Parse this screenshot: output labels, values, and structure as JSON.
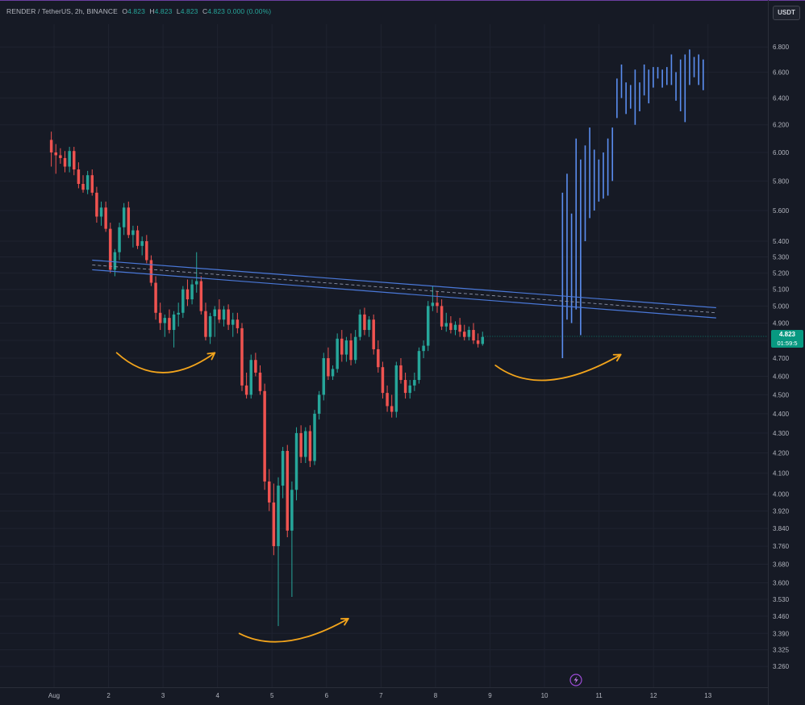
{
  "header": {
    "symbol": "RENDER / TetherUS, 2h, BINANCE",
    "o_label": "O",
    "o_value": "4.823",
    "h_label": "H",
    "h_value": "4.823",
    "l_label": "L",
    "l_value": "4.823",
    "c_label": "C",
    "c_value": "4.823",
    "change": "0.000 (0.00%)"
  },
  "unit_button": "USDT",
  "price_label": {
    "price": "4.823",
    "countdown": "01:59:5"
  },
  "colors": {
    "background": "#161a25",
    "up": "#26a69a",
    "down": "#ef5350",
    "projection": "#5b8ef0",
    "trendline": "#4a78d8",
    "arrow": "#f2a41c"
  },
  "chart_data": {
    "type": "candlestick",
    "scale": "log",
    "ylim": [
      3.22,
      6.9
    ],
    "xlim": [
      1.0,
      13.3
    ],
    "y_ticks": [
      "6.800",
      "6.600",
      "6.400",
      "6.200",
      "6.000",
      "5.800",
      "5.600",
      "5.400",
      "5.300",
      "5.200",
      "5.100",
      "5.000",
      "4.900",
      "4.800",
      "4.700",
      "4.600",
      "4.500",
      "4.400",
      "4.300",
      "4.200",
      "4.100",
      "4.000",
      "3.920",
      "3.840",
      "3.760",
      "3.680",
      "3.600",
      "3.530",
      "3.460",
      "3.390",
      "3.325",
      "3.260"
    ],
    "x_ticks": [
      {
        "v": 1.0,
        "label": "Aug"
      },
      {
        "v": 2,
        "label": "2"
      },
      {
        "v": 3,
        "label": "3"
      },
      {
        "v": 4,
        "label": "4"
      },
      {
        "v": 5,
        "label": "5"
      },
      {
        "v": 6,
        "label": "6"
      },
      {
        "v": 7,
        "label": "7"
      },
      {
        "v": 8,
        "label": "8"
      },
      {
        "v": 9,
        "label": "9"
      },
      {
        "v": 10,
        "label": "10"
      },
      {
        "v": 11,
        "label": "11"
      },
      {
        "v": 12,
        "label": "12"
      },
      {
        "v": 13,
        "label": "13"
      }
    ],
    "candles_start_x": 0.95,
    "candles_step": 0.0833,
    "candles": [
      [
        6.09,
        6.15,
        5.9,
        6.0
      ],
      [
        6.0,
        6.06,
        5.85,
        5.98
      ],
      [
        5.98,
        6.03,
        5.92,
        5.96
      ],
      [
        5.96,
        6.01,
        5.86,
        5.9
      ],
      [
        5.9,
        6.04,
        5.86,
        6.01
      ],
      [
        6.01,
        6.04,
        5.84,
        5.88
      ],
      [
        5.88,
        5.93,
        5.75,
        5.78
      ],
      [
        5.78,
        5.84,
        5.72,
        5.74
      ],
      [
        5.74,
        5.87,
        5.71,
        5.84
      ],
      [
        5.84,
        5.88,
        5.7,
        5.72
      ],
      [
        5.72,
        5.76,
        5.52,
        5.56
      ],
      [
        5.56,
        5.66,
        5.5,
        5.62
      ],
      [
        5.62,
        5.66,
        5.46,
        5.48
      ],
      [
        5.48,
        5.52,
        5.2,
        5.22
      ],
      [
        5.22,
        5.35,
        5.18,
        5.33
      ],
      [
        5.33,
        5.52,
        5.28,
        5.49
      ],
      [
        5.49,
        5.65,
        5.44,
        5.62
      ],
      [
        5.62,
        5.66,
        5.42,
        5.44
      ],
      [
        5.44,
        5.5,
        5.36,
        5.47
      ],
      [
        5.47,
        5.5,
        5.35,
        5.37
      ],
      [
        5.37,
        5.43,
        5.31,
        5.4
      ],
      [
        5.4,
        5.44,
        5.26,
        5.28
      ],
      [
        5.28,
        5.31,
        5.12,
        5.14
      ],
      [
        5.14,
        5.18,
        4.92,
        4.96
      ],
      [
        4.96,
        5.02,
        4.86,
        4.9
      ],
      [
        4.9,
        4.95,
        4.82,
        4.93
      ],
      [
        4.93,
        4.98,
        4.84,
        4.86
      ],
      [
        4.86,
        4.97,
        4.76,
        4.95
      ],
      [
        4.95,
        5.02,
        4.88,
        4.96
      ],
      [
        4.96,
        5.12,
        4.93,
        5.1
      ],
      [
        5.1,
        5.16,
        5.0,
        5.04
      ],
      [
        5.04,
        5.16,
        5.01,
        5.13
      ],
      [
        5.13,
        5.33,
        5.08,
        5.15
      ],
      [
        5.15,
        5.18,
        4.95,
        4.97
      ],
      [
        4.97,
        5.02,
        4.8,
        4.82
      ],
      [
        4.82,
        4.96,
        4.78,
        4.94
      ],
      [
        4.94,
        5.0,
        4.82,
        4.98
      ],
      [
        4.98,
        5.04,
        4.9,
        4.92
      ],
      [
        4.92,
        5.0,
        4.88,
        4.98
      ],
      [
        4.98,
        5.01,
        4.86,
        4.89
      ],
      [
        4.89,
        4.96,
        4.82,
        4.92
      ],
      [
        4.92,
        4.96,
        4.84,
        4.87
      ],
      [
        4.87,
        4.9,
        4.52,
        4.55
      ],
      [
        4.55,
        4.62,
        4.48,
        4.5
      ],
      [
        4.5,
        4.72,
        4.48,
        4.69
      ],
      [
        4.69,
        4.73,
        4.6,
        4.62
      ],
      [
        4.62,
        4.66,
        4.5,
        4.52
      ],
      [
        4.52,
        4.56,
        4.02,
        4.06
      ],
      [
        4.06,
        4.12,
        3.92,
        3.96
      ],
      [
        3.96,
        4.05,
        3.72,
        3.76
      ],
      [
        3.76,
        4.08,
        3.42,
        4.04
      ],
      [
        4.04,
        4.23,
        3.98,
        4.21
      ],
      [
        4.21,
        4.24,
        3.8,
        3.83
      ],
      [
        3.83,
        4.06,
        3.54,
        4.02
      ],
      [
        4.02,
        4.33,
        3.97,
        4.3
      ],
      [
        4.3,
        4.34,
        4.15,
        4.18
      ],
      [
        4.18,
        4.33,
        4.15,
        4.31
      ],
      [
        4.31,
        4.34,
        4.13,
        4.16
      ],
      [
        4.16,
        4.42,
        4.14,
        4.4
      ],
      [
        4.4,
        4.52,
        4.37,
        4.5
      ],
      [
        4.5,
        4.73,
        4.47,
        4.7
      ],
      [
        4.7,
        4.76,
        4.58,
        4.6
      ],
      [
        4.6,
        4.66,
        4.58,
        4.64
      ],
      [
        4.64,
        4.84,
        4.62,
        4.81
      ],
      [
        4.81,
        4.86,
        4.68,
        4.72
      ],
      [
        4.72,
        4.82,
        4.68,
        4.8
      ],
      [
        4.8,
        4.84,
        4.66,
        4.69
      ],
      [
        4.69,
        4.86,
        4.67,
        4.82
      ],
      [
        4.82,
        4.98,
        4.8,
        4.95
      ],
      [
        4.95,
        4.99,
        4.83,
        4.86
      ],
      [
        4.86,
        4.94,
        4.82,
        4.92
      ],
      [
        4.92,
        4.95,
        4.72,
        4.75
      ],
      [
        4.75,
        4.8,
        4.62,
        4.65
      ],
      [
        4.65,
        4.68,
        4.48,
        4.51
      ],
      [
        4.51,
        4.55,
        4.41,
        4.44
      ],
      [
        4.44,
        4.5,
        4.38,
        4.41
      ],
      [
        4.41,
        4.68,
        4.38,
        4.66
      ],
      [
        4.66,
        4.7,
        4.56,
        4.58
      ],
      [
        4.58,
        4.62,
        4.48,
        4.51
      ],
      [
        4.51,
        4.58,
        4.48,
        4.55
      ],
      [
        4.55,
        4.62,
        4.52,
        4.58
      ],
      [
        4.58,
        4.76,
        4.56,
        4.74
      ],
      [
        4.74,
        4.8,
        4.7,
        4.77
      ],
      [
        4.77,
        5.03,
        4.74,
        5.0
      ],
      [
        5.0,
        5.12,
        4.97,
        5.02
      ],
      [
        5.02,
        5.09,
        4.96,
        5.0
      ],
      [
        5.0,
        5.04,
        4.86,
        4.88
      ],
      [
        4.88,
        4.96,
        4.85,
        4.9
      ],
      [
        4.9,
        4.94,
        4.84,
        4.86
      ],
      [
        4.86,
        4.91,
        4.83,
        4.89
      ],
      [
        4.89,
        4.93,
        4.82,
        4.85
      ],
      [
        4.85,
        4.89,
        4.8,
        4.82
      ],
      [
        4.82,
        4.88,
        4.8,
        4.86
      ],
      [
        4.86,
        4.9,
        4.78,
        4.8
      ],
      [
        4.8,
        4.84,
        4.76,
        4.78
      ],
      [
        4.78,
        4.85,
        4.77,
        4.82
      ]
    ],
    "projection_start_x": 10.33,
    "projection_step": 0.0833,
    "projection_bars": [
      [
        4.7,
        5.72
      ],
      [
        4.92,
        5.85
      ],
      [
        4.9,
        5.58
      ],
      [
        4.98,
        6.1
      ],
      [
        4.83,
        5.95
      ],
      [
        5.4,
        6.05
      ],
      [
        5.55,
        6.18
      ],
      [
        5.6,
        6.02
      ],
      [
        5.66,
        5.95
      ],
      [
        5.68,
        6.0
      ],
      [
        5.7,
        6.1
      ],
      [
        5.8,
        6.18
      ],
      [
        6.25,
        6.55
      ],
      [
        6.4,
        6.66
      ],
      [
        6.28,
        6.52
      ],
      [
        6.32,
        6.5
      ],
      [
        6.2,
        6.62
      ],
      [
        6.3,
        6.52
      ],
      [
        6.42,
        6.66
      ],
      [
        6.36,
        6.62
      ],
      [
        6.48,
        6.64
      ],
      [
        6.55,
        6.64
      ],
      [
        6.48,
        6.62
      ],
      [
        6.5,
        6.64
      ],
      [
        6.5,
        6.74
      ],
      [
        6.38,
        6.6
      ],
      [
        6.3,
        6.7
      ],
      [
        6.22,
        6.74
      ],
      [
        6.5,
        6.78
      ],
      [
        6.56,
        6.72
      ],
      [
        6.5,
        6.74
      ],
      [
        6.46,
        6.7
      ]
    ],
    "trendline": {
      "upper": [
        [
          1.7,
          5.28
        ],
        [
          13.15,
          4.99
        ]
      ],
      "lower": [
        [
          1.7,
          5.22
        ],
        [
          13.15,
          4.93
        ]
      ],
      "mid": [
        [
          1.7,
          5.25
        ],
        [
          13.15,
          4.96
        ]
      ]
    },
    "arrows": [
      {
        "x": [
          2.15,
          3.0,
          3.95
        ],
        "y": [
          4.73,
          4.62,
          4.73
        ]
      },
      {
        "x": [
          4.4,
          5.3,
          6.4
        ],
        "y": [
          3.39,
          3.36,
          3.45
        ]
      },
      {
        "x": [
          9.1,
          10.1,
          11.4
        ],
        "y": [
          4.66,
          4.58,
          4.72
        ]
      }
    ],
    "current_price": 4.823
  }
}
